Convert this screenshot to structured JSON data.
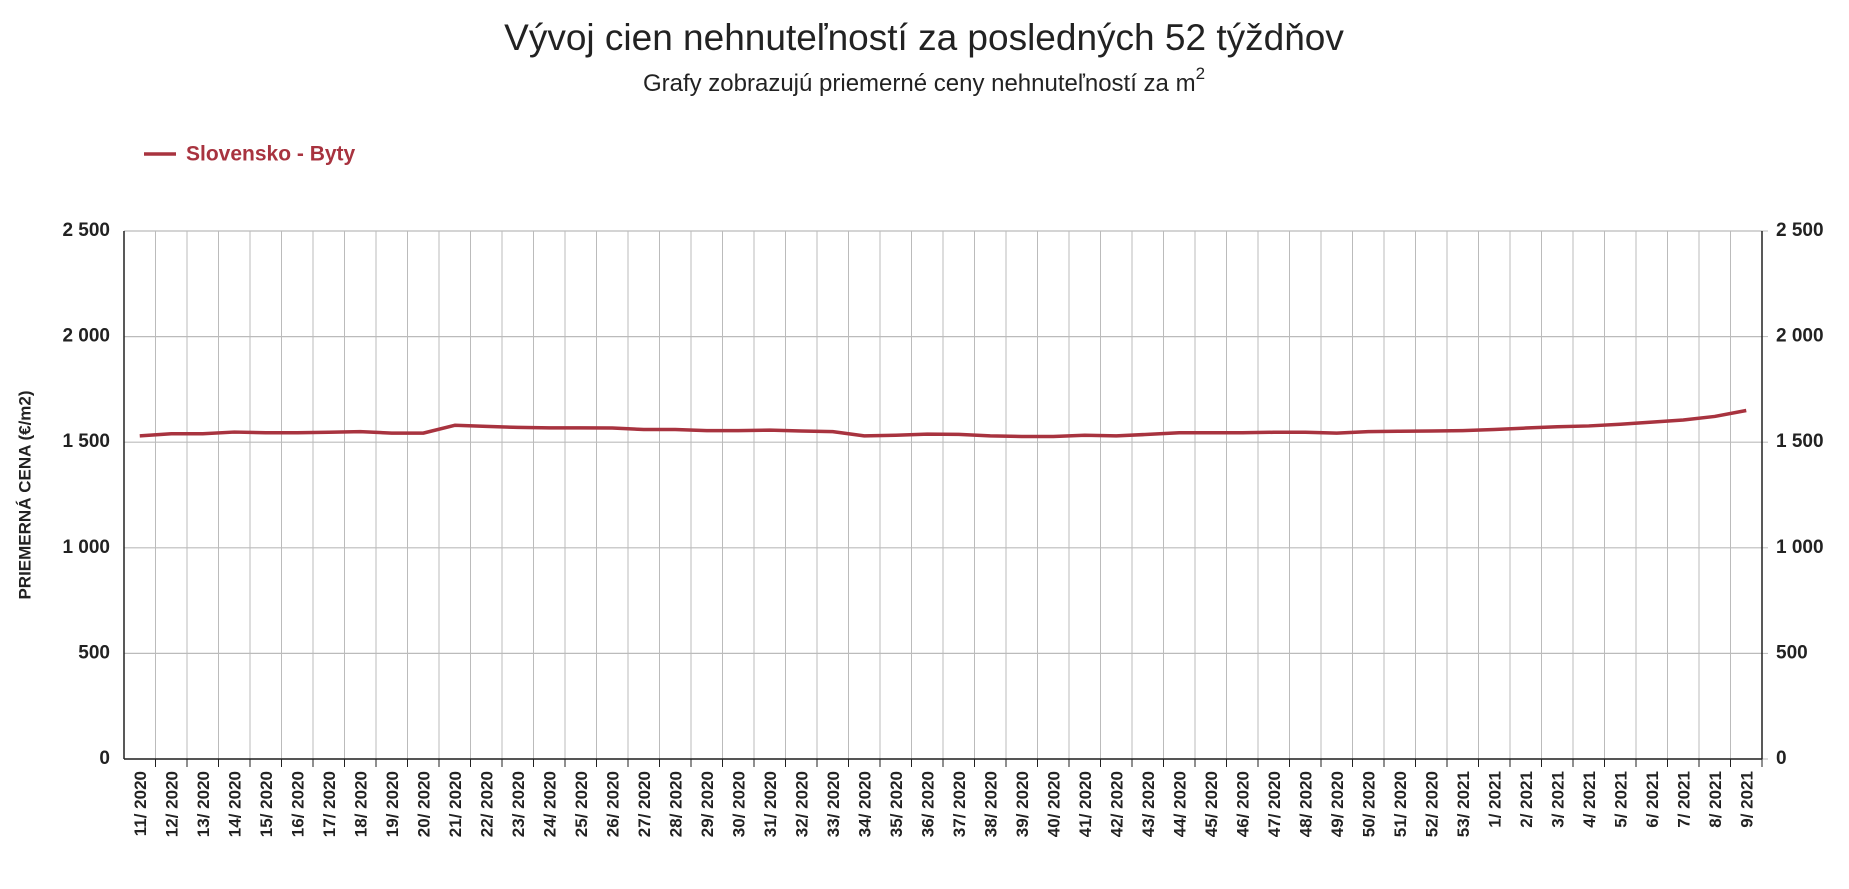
{
  "chart_data": {
    "type": "line",
    "title": "Vývoj cien nehnuteľností za posledných 52 týždňov",
    "subtitle": "Grafy zobrazujú priemerné ceny nehnuteľností za m",
    "subtitle_superscript": "2",
    "ylabel": "PRIEMERNÁ CENA (€/m2)",
    "categories": [
      "11/ 2020",
      "12/ 2020",
      "13/ 2020",
      "14/ 2020",
      "15/ 2020",
      "16/ 2020",
      "17/ 2020",
      "18/ 2020",
      "19/ 2020",
      "20/ 2020",
      "21/ 2020",
      "22/ 2020",
      "23/ 2020",
      "24/ 2020",
      "25/ 2020",
      "26/ 2020",
      "27/ 2020",
      "28/ 2020",
      "29/ 2020",
      "30/ 2020",
      "31/ 2020",
      "32/ 2020",
      "33/ 2020",
      "34/ 2020",
      "35/ 2020",
      "36/ 2020",
      "37/ 2020",
      "38/ 2020",
      "39/ 2020",
      "40/ 2020",
      "41/ 2020",
      "42/ 2020",
      "43/ 2020",
      "44/ 2020",
      "45/ 2020",
      "46/ 2020",
      "47/ 2020",
      "48/ 2020",
      "49/ 2020",
      "50/ 2020",
      "51/ 2020",
      "52/ 2020",
      "53/ 2021",
      "1/ 2021",
      "2/ 2021",
      "3/ 2021",
      "4/ 2021",
      "5/ 2021",
      "6/ 2021",
      "7/ 2021",
      "8/ 2021",
      "9/ 2021"
    ],
    "series": [
      {
        "name": "Slovensko - Byty",
        "color": "#a8333f",
        "values": [
          1530,
          1540,
          1540,
          1548,
          1545,
          1545,
          1547,
          1550,
          1543,
          1543,
          1580,
          1575,
          1570,
          1568,
          1568,
          1567,
          1560,
          1560,
          1555,
          1555,
          1557,
          1553,
          1550,
          1530,
          1533,
          1538,
          1537,
          1530,
          1527,
          1527,
          1533,
          1530,
          1537,
          1545,
          1545,
          1545,
          1547,
          1547,
          1543,
          1550,
          1552,
          1553,
          1555,
          1560,
          1567,
          1573,
          1577,
          1585,
          1595,
          1605,
          1622,
          1650
        ]
      }
    ],
    "ylim": [
      0,
      2500
    ],
    "yticks": [
      0,
      500,
      {
        "value": 1000,
        "label": "1 000"
      },
      {
        "value": 1500,
        "label": "1 500"
      },
      {
        "value": 2000,
        "label": "2 000"
      },
      {
        "value": 2500,
        "label": "2 500"
      }
    ],
    "y2lim": [
      0,
      2500
    ],
    "y2ticks": [
      0,
      500,
      {
        "value": 1000,
        "label": "1 000"
      },
      {
        "value": 1500,
        "label": "1 500"
      },
      {
        "value": 2000,
        "label": "2 000"
      },
      {
        "value": 2500,
        "label": "2 500"
      }
    ],
    "grid": true,
    "legend": "top-left"
  }
}
